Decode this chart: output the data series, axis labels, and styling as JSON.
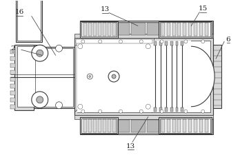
{
  "fig_width": 3.48,
  "fig_height": 2.25,
  "dpi": 100,
  "bg_color": "#ffffff",
  "lc": "#383838",
  "gray": "#b8b8b8",
  "lgray": "#d8d8d8",
  "dgray": "#909090"
}
